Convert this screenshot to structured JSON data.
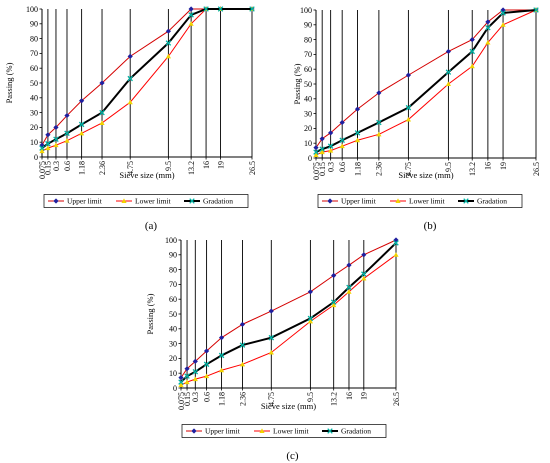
{
  "chart_data": [
    {
      "panel": "a",
      "caption": "(a)",
      "type": "line",
      "xlabel": "Sieve size (mm)",
      "ylabel": "Passing (%)",
      "x_scale": "sieve spacing (approx. 0.45 power)",
      "categories": [
        "0.075",
        "0.15",
        "0.3",
        "0.6",
        "1.18",
        "2.36",
        "4.75",
        "9.5",
        "13.2",
        "16",
        "19",
        "26.5"
      ],
      "ylim": [
        0,
        100
      ],
      "yticks": [
        0,
        10,
        20,
        30,
        40,
        50,
        60,
        70,
        80,
        90,
        100
      ],
      "grid": "vertical lines at each sieve size",
      "legend_position": "bottom",
      "series": [
        {
          "name": "Upper limit",
          "color": "#d40000",
          "marker": "diamond",
          "marker_color": "#1f1f9e",
          "values": [
            8,
            15,
            20,
            28,
            38,
            50,
            68,
            85,
            100,
            100,
            100,
            100
          ]
        },
        {
          "name": "Lower limit",
          "color": "#ff0000",
          "marker": "triangle",
          "marker_color": "#f2d400",
          "values": [
            4,
            6,
            8,
            11,
            16,
            23,
            37,
            68,
            90,
            100,
            100,
            100
          ]
        },
        {
          "name": "Gradation",
          "color": "#000000",
          "marker": "x",
          "marker_color": "#00b3a4",
          "values": [
            6,
            9,
            12,
            16,
            22,
            30,
            53,
            77,
            96,
            100,
            100,
            100
          ]
        }
      ]
    },
    {
      "panel": "b",
      "caption": "(b)",
      "type": "line",
      "xlabel": "Sieve size (mm)",
      "ylabel": "Passing (%)",
      "x_scale": "sieve spacing (approx. 0.45 power)",
      "categories": [
        "0.075",
        "0.15",
        "0.3",
        "0.6",
        "1.18",
        "2.36",
        "4.75",
        "9.5",
        "13.2",
        "16",
        "19",
        "26.5"
      ],
      "ylim": [
        0,
        100
      ],
      "yticks": [
        0,
        10,
        20,
        30,
        40,
        50,
        60,
        70,
        80,
        90,
        100
      ],
      "grid": "vertical lines at each sieve size",
      "legend_position": "bottom",
      "series": [
        {
          "name": "Upper limit",
          "color": "#d40000",
          "marker": "diamond",
          "marker_color": "#1f1f9e",
          "values": [
            7,
            13,
            17,
            24,
            33,
            44,
            56,
            72,
            80,
            92,
            100,
            100
          ]
        },
        {
          "name": "Lower limit",
          "color": "#ff0000",
          "marker": "triangle",
          "marker_color": "#f2d400",
          "values": [
            2,
            4,
            5,
            8,
            12,
            16,
            26,
            50,
            62,
            78,
            90,
            100
          ]
        },
        {
          "name": "Gradation",
          "color": "#000000",
          "marker": "x",
          "marker_color": "#00b3a4",
          "values": [
            4,
            6,
            8,
            12,
            17,
            24,
            34,
            58,
            72,
            88,
            98,
            100
          ]
        }
      ]
    },
    {
      "panel": "c",
      "caption": "(c)",
      "type": "line",
      "xlabel": "Sieve size (mm)",
      "ylabel": "Passing (%)",
      "x_scale": "sieve spacing (approx. 0.45 power)",
      "categories": [
        "0.075",
        "0.15",
        "0.3",
        "0.6",
        "1.18",
        "2.36",
        "4.75",
        "9.5",
        "13.2",
        "16",
        "19",
        "26.5"
      ],
      "ylim": [
        0,
        100
      ],
      "yticks": [
        0,
        10,
        20,
        30,
        40,
        50,
        60,
        70,
        80,
        90,
        100
      ],
      "grid": "vertical lines at each sieve size",
      "legend_position": "bottom",
      "series": [
        {
          "name": "Upper limit",
          "color": "#d40000",
          "marker": "diamond",
          "marker_color": "#1f1f9e",
          "values": [
            7,
            13,
            18,
            25,
            34,
            43,
            52,
            65,
            76,
            83,
            90,
            100
          ]
        },
        {
          "name": "Lower limit",
          "color": "#ff0000",
          "marker": "triangle",
          "marker_color": "#f2d400",
          "values": [
            2,
            4,
            6,
            8,
            12,
            16,
            24,
            45,
            56,
            65,
            74,
            90
          ]
        },
        {
          "name": "Gradation",
          "color": "#000000",
          "marker": "x",
          "marker_color": "#00b3a4",
          "values": [
            4,
            8,
            11,
            16,
            22,
            29,
            34,
            47,
            58,
            68,
            77,
            98
          ]
        }
      ]
    }
  ]
}
